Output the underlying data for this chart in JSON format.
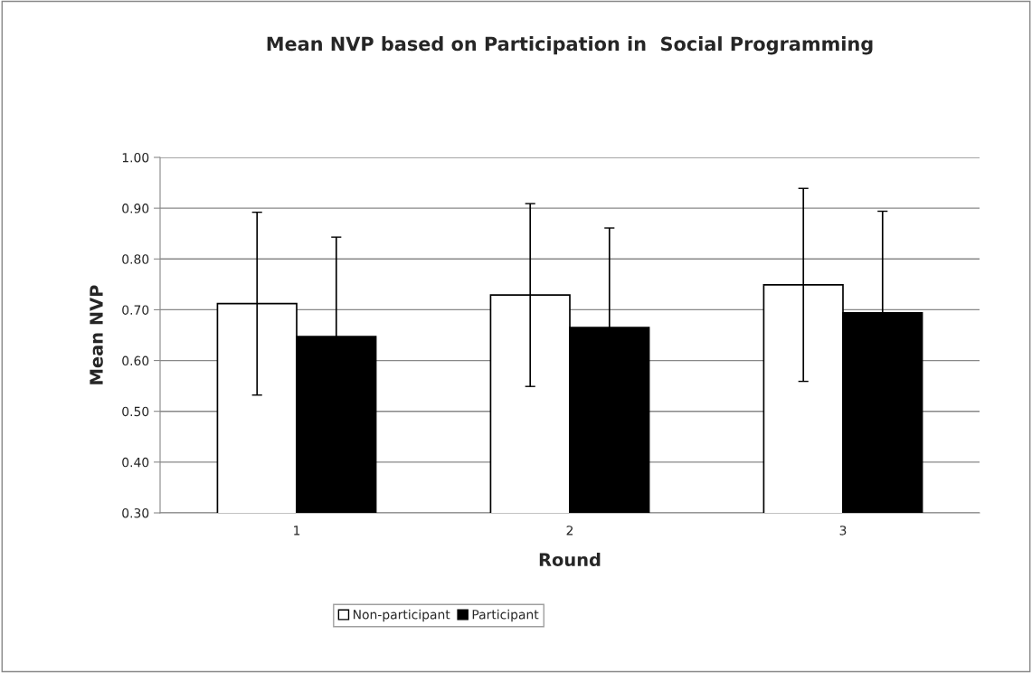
{
  "chart_data": {
    "type": "bar",
    "title": "Mean NVP based on Participation in  Social Programming",
    "xlabel": "Round",
    "ylabel": "Mean NVP",
    "categories": [
      "1",
      "2",
      "3"
    ],
    "series": [
      {
        "name": "Non-participant",
        "color": "#ffffff",
        "values": [
          0.712,
          0.729,
          0.749
        ],
        "errors": [
          0.18,
          0.18,
          0.19
        ]
      },
      {
        "name": "Participant",
        "color": "#000000",
        "values": [
          0.647,
          0.665,
          0.694
        ],
        "errors": [
          0.196,
          0.196,
          0.2
        ]
      }
    ],
    "ylim": [
      0.3,
      1.0
    ],
    "yticks": [
      {
        "value": 0.3,
        "label": "0.30"
      },
      {
        "value": 0.4,
        "label": "0.40"
      },
      {
        "value": 0.5,
        "label": "0.50"
      },
      {
        "value": 0.6,
        "label": "0.60"
      },
      {
        "value": 0.7,
        "label": "0.70"
      },
      {
        "value": 0.8,
        "label": "0.80"
      },
      {
        "value": 0.9,
        "label": "0.90"
      },
      {
        "value": 1.0,
        "label": "1.00"
      }
    ],
    "grid": "y",
    "legend": "bottom"
  }
}
